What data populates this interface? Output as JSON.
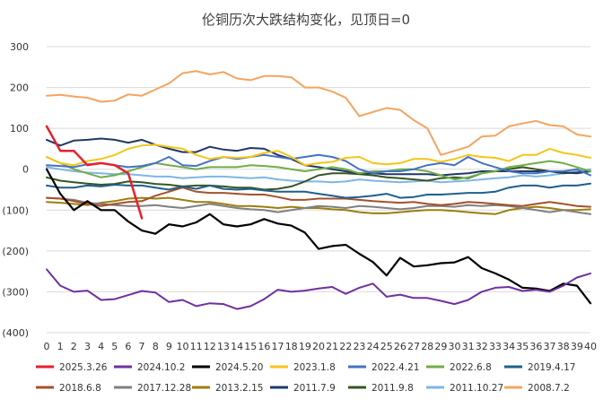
{
  "chart_data": {
    "type": "line",
    "title": "伦铜历次大跌结构变化，见顶日=0",
    "xlabel": "",
    "ylabel": "",
    "ylim": [
      -400,
      300
    ],
    "yticks": [
      300,
      200,
      100,
      0,
      -100,
      -200,
      -300,
      -400
    ],
    "ytick_labels": [
      "300",
      "200",
      "100",
      "0",
      "(100)",
      "(200)",
      "(300)",
      "(400)"
    ],
    "x": [
      0,
      1,
      2,
      3,
      4,
      5,
      6,
      7,
      8,
      9,
      10,
      11,
      12,
      13,
      14,
      15,
      16,
      17,
      18,
      19,
      20,
      21,
      22,
      23,
      24,
      25,
      26,
      27,
      28,
      29,
      30,
      31,
      32,
      33,
      34,
      35,
      36,
      37,
      38,
      39,
      40
    ],
    "grid": "horizontal",
    "legend_position": "bottom",
    "series": [
      {
        "name": "2025.3.26",
        "color": "#e8202a",
        "width": 2.5,
        "values": [
          105,
          45,
          45,
          10,
          15,
          10,
          -10,
          -120,
          null,
          null,
          null,
          null,
          null,
          null,
          null,
          null,
          null,
          null,
          null,
          null,
          null,
          null,
          null,
          null,
          null,
          null,
          null,
          null,
          null,
          null,
          null,
          null,
          null,
          null,
          null,
          null,
          null,
          null,
          null,
          null,
          null
        ]
      },
      {
        "name": "2024.10.2",
        "color": "#7030a0",
        "width": 2,
        "values": [
          -245,
          -285,
          -300,
          -297,
          -320,
          -318,
          -308,
          -298,
          -302,
          -325,
          -320,
          -335,
          -328,
          -330,
          -342,
          -335,
          -318,
          -295,
          -300,
          -297,
          -292,
          -288,
          -305,
          -290,
          -280,
          -312,
          -307,
          -315,
          -315,
          -322,
          -330,
          -320,
          -300,
          -290,
          -288,
          -298,
          -295,
          -300,
          -285,
          -265,
          -255
        ]
      },
      {
        "name": "2024.5.20",
        "color": "#000000",
        "width": 2.2,
        "values": [
          0,
          -60,
          -100,
          -78,
          -100,
          -100,
          -128,
          -150,
          -158,
          -135,
          -140,
          -130,
          -110,
          -135,
          -140,
          -135,
          -122,
          -133,
          -138,
          -155,
          -195,
          -188,
          -185,
          -207,
          -227,
          -260,
          -217,
          -238,
          -235,
          -230,
          -228,
          -215,
          -242,
          -255,
          -270,
          -290,
          -292,
          -298,
          -280,
          -285,
          -328
        ]
      },
      {
        "name": "2023.1.8",
        "color": "#f5c518",
        "width": 2,
        "values": [
          30,
          15,
          10,
          20,
          25,
          35,
          50,
          58,
          60,
          55,
          50,
          35,
          25,
          30,
          28,
          30,
          40,
          45,
          30,
          10,
          15,
          18,
          28,
          30,
          15,
          12,
          15,
          25,
          25,
          18,
          25,
          35,
          30,
          28,
          20,
          35,
          35,
          50,
          40,
          35,
          28
        ]
      },
      {
        "name": "2022.4.21",
        "color": "#4472c4",
        "width": 2,
        "values": [
          10,
          8,
          5,
          12,
          15,
          10,
          5,
          8,
          15,
          30,
          10,
          8,
          20,
          30,
          25,
          30,
          35,
          30,
          25,
          30,
          35,
          30,
          20,
          0,
          -10,
          -5,
          -5,
          0,
          10,
          15,
          10,
          30,
          15,
          5,
          -5,
          -10,
          -10,
          -5,
          -5,
          0,
          -15
        ]
      },
      {
        "name": "2022.6.8",
        "color": "#70ad47",
        "width": 2,
        "values": [
          30,
          15,
          0,
          -10,
          -20,
          -15,
          -5,
          5,
          15,
          10,
          5,
          0,
          5,
          5,
          5,
          10,
          8,
          5,
          0,
          -5,
          0,
          5,
          0,
          -10,
          -5,
          -5,
          0,
          0,
          -5,
          -15,
          -25,
          -20,
          -10,
          -5,
          5,
          10,
          15,
          20,
          15,
          5,
          -5
        ]
      },
      {
        "name": "2019.4.17",
        "color": "#1f5f8b",
        "width": 2,
        "values": [
          -40,
          -45,
          -45,
          -40,
          -42,
          -38,
          -40,
          -40,
          -45,
          -50,
          -42,
          -48,
          -40,
          -48,
          -50,
          -48,
          -52,
          -55,
          -55,
          -55,
          -60,
          -65,
          -70,
          -68,
          -65,
          -60,
          -70,
          -68,
          -62,
          -62,
          -60,
          -58,
          -58,
          -55,
          -45,
          -40,
          -40,
          -45,
          -40,
          -40,
          -35
        ]
      },
      {
        "name": "2018.6.8",
        "color": "#a5512b",
        "width": 2,
        "values": [
          -70,
          -72,
          -78,
          -85,
          -90,
          -85,
          -80,
          -78,
          -65,
          -55,
          -45,
          -55,
          -58,
          -58,
          -60,
          -62,
          -62,
          -68,
          -75,
          -75,
          -72,
          -72,
          -72,
          -75,
          -78,
          -80,
          -82,
          -80,
          -85,
          -88,
          -85,
          -80,
          -82,
          -85,
          -88,
          -90,
          -85,
          -80,
          -85,
          -90,
          -92
        ]
      },
      {
        "name": "2017.12.28",
        "color": "#808080",
        "width": 2,
        "values": [
          -70,
          -72,
          -75,
          -82,
          -85,
          -88,
          -90,
          -90,
          -88,
          -92,
          -95,
          -90,
          -85,
          -90,
          -95,
          -98,
          -100,
          -105,
          -100,
          -95,
          -90,
          -92,
          -95,
          -90,
          -92,
          -95,
          -98,
          -95,
          -90,
          -90,
          -92,
          -88,
          -90,
          -88,
          -90,
          -95,
          -100,
          -105,
          -100,
          -105,
          -110
        ]
      },
      {
        "name": "2013.2.15",
        "color": "#9c7f0b",
        "width": 2,
        "values": [
          -80,
          -82,
          -85,
          -88,
          -82,
          -78,
          -72,
          -70,
          -72,
          -70,
          -75,
          -80,
          -80,
          -85,
          -90,
          -90,
          -92,
          -95,
          -92,
          -95,
          -95,
          -98,
          -100,
          -105,
          -108,
          -108,
          -105,
          -102,
          -100,
          -100,
          -102,
          -105,
          -108,
          -110,
          -100,
          -95,
          -92,
          -95,
          -100,
          -100,
          -98
        ]
      },
      {
        "name": "2011.7.9",
        "color": "#1f3864",
        "width": 2,
        "values": [
          72,
          58,
          70,
          72,
          75,
          72,
          65,
          72,
          60,
          50,
          42,
          42,
          55,
          48,
          45,
          52,
          50,
          35,
          25,
          10,
          5,
          0,
          -5,
          -10,
          -10,
          -12,
          -12,
          -12,
          -12,
          -15,
          -12,
          -10,
          -5,
          -5,
          -5,
          -5,
          -5,
          -5,
          -8,
          -10,
          -5
        ]
      },
      {
        "name": "2011.9.8",
        "color": "#375623",
        "width": 2,
        "values": [
          -20,
          -28,
          -32,
          -35,
          -38,
          -36,
          -30,
          -32,
          -36,
          -38,
          -42,
          -40,
          -40,
          -42,
          -45,
          -45,
          -50,
          -48,
          -42,
          -30,
          -15,
          -10,
          -10,
          -12,
          -15,
          -20,
          -22,
          -25,
          -28,
          -22,
          -20,
          -22,
          -10,
          -5,
          0,
          5,
          0,
          -5,
          -10,
          -8,
          -5
        ]
      },
      {
        "name": "2011.10.27",
        "color": "#7eb6e5",
        "width": 2,
        "values": [
          5,
          0,
          -5,
          -8,
          -10,
          -12,
          -12,
          -15,
          -18,
          -18,
          -22,
          -20,
          -18,
          -18,
          -20,
          -22,
          -20,
          -25,
          -28,
          -30,
          -30,
          -32,
          -30,
          -25,
          -28,
          -30,
          -32,
          -30,
          -28,
          -32,
          -30,
          -28,
          -25,
          -22,
          -20,
          -15,
          -18,
          -15,
          -10,
          -5,
          0
        ]
      },
      {
        "name": "2008.7.2",
        "color": "#f4a460",
        "width": 2,
        "values": [
          180,
          182,
          178,
          175,
          165,
          168,
          183,
          180,
          195,
          210,
          235,
          240,
          232,
          238,
          222,
          218,
          228,
          228,
          225,
          200,
          200,
          190,
          175,
          130,
          140,
          150,
          145,
          120,
          100,
          35,
          45,
          55,
          80,
          82,
          105,
          112,
          118,
          108,
          105,
          85,
          80
        ]
      }
    ]
  }
}
